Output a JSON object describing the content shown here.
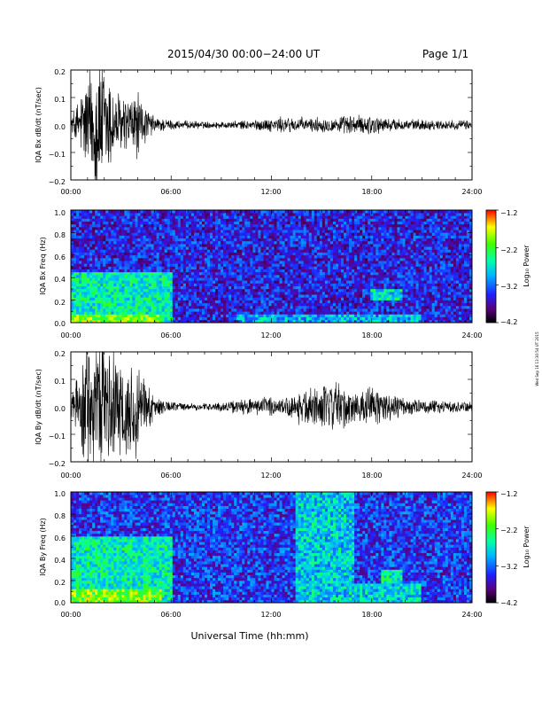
{
  "header": {
    "title": "2015/04/30  00:00−24:00 UT",
    "page_label": "Page 1/1"
  },
  "footer": {
    "xlabel": "Universal Time (hh:mm)",
    "side_stamp": "Wed Sep 16 13:30:54 UT 2015"
  },
  "colors": {
    "background": "#ffffff",
    "trace": "#000000",
    "spectrogram_low": "#3a2fd6",
    "spectrogram_high": "#ff0000"
  },
  "chart_data": [
    {
      "type": "line",
      "ylabel": "IQA Bx dB/dt (nT/sec)",
      "xlim": [
        0,
        24
      ],
      "x_ticks": [
        "00:00",
        "06:00",
        "12:00",
        "18:00",
        "24:00"
      ],
      "ylim": [
        -0.2,
        0.2
      ],
      "y_ticks": [
        "0.2",
        "0.1",
        "0.0",
        "−0.1",
        "−0.2"
      ],
      "grid": false,
      "envelope": {
        "hours": [
          0,
          0.5,
          1,
          1.5,
          2,
          2.5,
          3,
          3.5,
          4,
          4.5,
          5,
          5.5,
          6,
          7,
          8,
          9,
          10,
          11,
          12,
          13,
          14,
          15,
          16,
          17,
          18,
          19,
          20,
          21,
          22,
          23,
          24
        ],
        "amplitude": [
          0.03,
          0.08,
          0.17,
          0.22,
          0.2,
          0.12,
          0.09,
          0.08,
          0.1,
          0.05,
          0.025,
          0.02,
          0.015,
          0.012,
          0.01,
          0.01,
          0.012,
          0.015,
          0.02,
          0.025,
          0.022,
          0.022,
          0.025,
          0.028,
          0.03,
          0.02,
          0.018,
          0.016,
          0.015,
          0.014,
          0.014
        ]
      }
    },
    {
      "type": "heatmap",
      "ylabel": "IQA Bx Freq (Hz)",
      "xlim": [
        0,
        24
      ],
      "x_ticks": [
        "00:00",
        "06:00",
        "12:00",
        "18:00",
        "24:00"
      ],
      "ylim": [
        0,
        1.0
      ],
      "y_ticks": [
        "1.0",
        "0.8",
        "0.6",
        "0.4",
        "0.2",
        "0.0"
      ],
      "colorbar": {
        "label": "Log₁₀ Power",
        "range": [
          -4.2,
          -1.2
        ],
        "ticks": [
          "−1.2",
          "−2.2",
          "−3.2",
          "−4.2"
        ]
      },
      "features": [
        {
          "hours": [
            0,
            6
          ],
          "freq_max_hz": 0.45,
          "log_power": -2.6
        },
        {
          "hours": [
            0,
            5.5
          ],
          "freq_max_hz": 0.08,
          "log_power": -2.0
        },
        {
          "hours": [
            10,
            21
          ],
          "freq_max_hz": 0.08,
          "log_power": -2.9
        },
        {
          "hours": [
            18,
            19.8
          ],
          "freq_range_hz": [
            0.2,
            0.3
          ],
          "log_power": -2.7
        }
      ],
      "background_log_power": -3.5
    },
    {
      "type": "line",
      "ylabel": "IQA By dB/dt (nT/sec)",
      "xlim": [
        0,
        24
      ],
      "x_ticks": [
        "00:00",
        "06:00",
        "12:00",
        "18:00",
        "24:00"
      ],
      "ylim": [
        -0.2,
        0.2
      ],
      "y_ticks": [
        "0.2",
        "0.1",
        "0.0",
        "−0.1",
        "−0.2"
      ],
      "grid": false,
      "envelope": {
        "hours": [
          0,
          0.5,
          1,
          1.5,
          2,
          2.5,
          3,
          3.5,
          4,
          4.5,
          5,
          5.5,
          6,
          7,
          8,
          9,
          10,
          11,
          12,
          13,
          14,
          15,
          16,
          17,
          18,
          19,
          20,
          21,
          22,
          23,
          24
        ],
        "amplitude": [
          0.05,
          0.1,
          0.2,
          0.22,
          0.21,
          0.15,
          0.16,
          0.12,
          0.14,
          0.08,
          0.03,
          0.02,
          0.015,
          0.012,
          0.01,
          0.012,
          0.02,
          0.025,
          0.03,
          0.04,
          0.06,
          0.06,
          0.07,
          0.04,
          0.06,
          0.04,
          0.025,
          0.02,
          0.018,
          0.016,
          0.015
        ]
      }
    },
    {
      "type": "heatmap",
      "ylabel": "IQA By Freq (Hz)",
      "xlim": [
        0,
        24
      ],
      "x_ticks": [
        "00:00",
        "06:00",
        "12:00",
        "18:00",
        "24:00"
      ],
      "ylim": [
        0,
        1.0
      ],
      "y_ticks": [
        "1.0",
        "0.8",
        "0.6",
        "0.4",
        "0.2",
        "0.0"
      ],
      "colorbar": {
        "label": "Log₁₀ Power",
        "range": [
          -4.2,
          -1.2
        ],
        "ticks": [
          "−1.2",
          "−2.2",
          "−3.2",
          "−4.2"
        ]
      },
      "features": [
        {
          "hours": [
            0,
            6
          ],
          "freq_max_hz": 0.6,
          "log_power": -2.6
        },
        {
          "hours": [
            0,
            5.5
          ],
          "freq_max_hz": 0.12,
          "log_power": -2.0
        },
        {
          "hours": [
            13.5,
            17
          ],
          "freq_max_hz": 1.0,
          "log_power": -2.8
        },
        {
          "hours": [
            16.5,
            21
          ],
          "freq_max_hz": 0.18,
          "log_power": -2.8
        },
        {
          "hours": [
            18.5,
            19.8
          ],
          "freq_range_hz": [
            0.18,
            0.3
          ],
          "log_power": -2.6
        }
      ],
      "background_log_power": -3.4
    }
  ]
}
